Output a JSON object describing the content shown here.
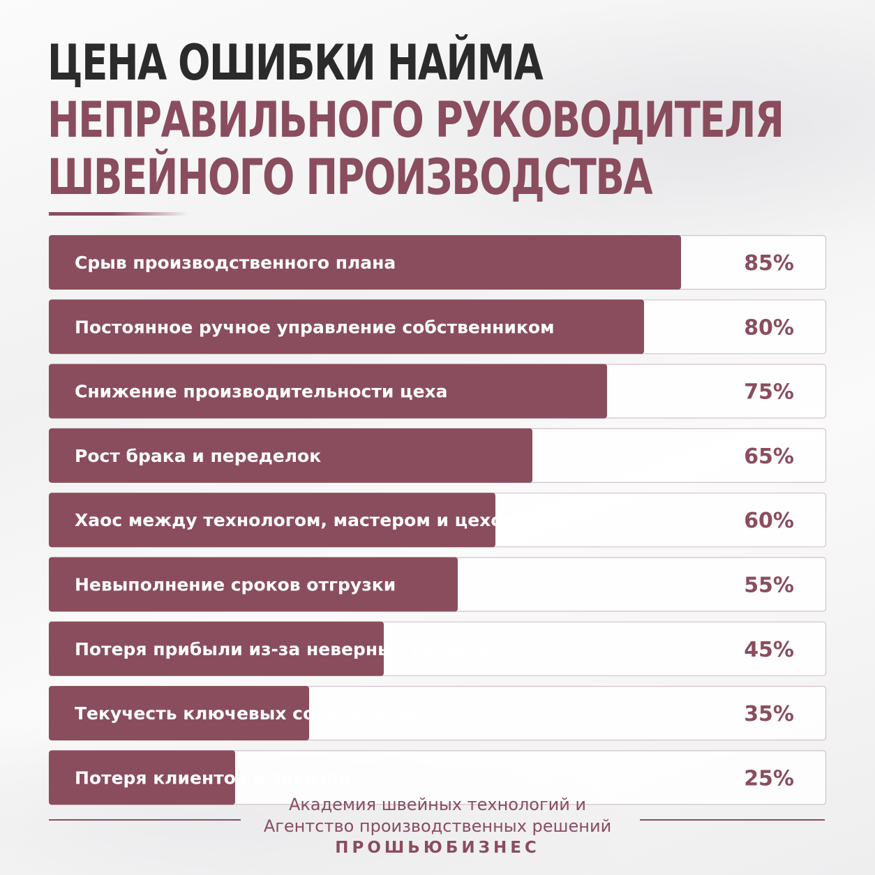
{
  "title": {
    "line1": "ЦЕНА ОШИБКИ НАЙМА",
    "line2": "НЕПРАВИЛЬНОГО РУКОВОДИТЕЛЯ",
    "line3": "ШВЕЙНОГО ПРОИЗВОДСТВА"
  },
  "colors": {
    "bar": "#8a4d5e",
    "accent": "#8a4d5e",
    "heading": "#2b2b2b"
  },
  "chart_data": {
    "type": "bar",
    "orientation": "horizontal",
    "categories": [
      "Срыв производственного плана",
      "Постоянное ручное управление собственником",
      "Снижение производительности цеха",
      "Рост брака и переделок",
      "Хаос между технологом, мастером и цехом",
      "Невыполнение сроков отгрузки",
      "Потеря прибыли из-за неверных решений",
      "Текучесть ключевых сотрудников",
      "Потеря клиентов и заказов"
    ],
    "values": [
      85,
      80,
      75,
      65,
      60,
      55,
      45,
      35,
      25
    ],
    "value_labels": [
      "85%",
      "80%",
      "75%",
      "65%",
      "60%",
      "55%",
      "45%",
      "35%",
      "25%"
    ],
    "xlim": [
      0,
      100
    ]
  },
  "footer": {
    "line1": "Академия швейных технологий и",
    "line2": "Агентство производственных решений",
    "brand": "ПРОШЬЮБИЗНЕС"
  }
}
